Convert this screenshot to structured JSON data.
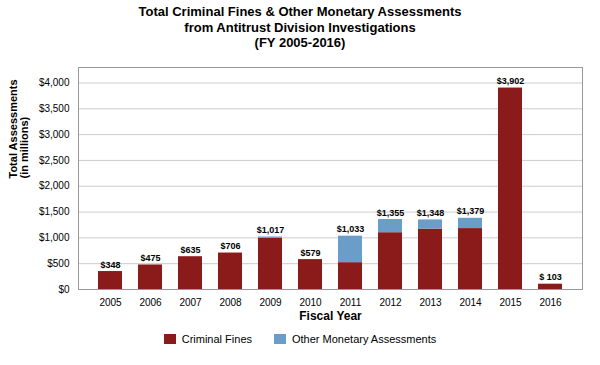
{
  "chart_data": {
    "type": "bar",
    "stacked": true,
    "title": "Total Criminal Fines & Other Monetary Assessments\nfrom Antitrust Division Investigations\n(FY 2005-2016)",
    "xlabel": "Fiscal Year",
    "ylabel": "Total Assessments\n(in millions)",
    "categories": [
      "2005",
      "2006",
      "2007",
      "2008",
      "2009",
      "2010",
      "2011",
      "2012",
      "2013",
      "2014",
      "2015",
      "2016"
    ],
    "series": [
      {
        "name": "Criminal Fines",
        "color": "#8B1A1A",
        "values": [
          348,
          475,
          635,
          706,
          990,
          579,
          520,
          1100,
          1170,
          1180,
          3902,
          103
        ]
      },
      {
        "name": "Other Monetary Assessments",
        "color": "#6B9DC9",
        "values": [
          0,
          0,
          0,
          0,
          27,
          0,
          513,
          255,
          178,
          199,
          0,
          0
        ]
      }
    ],
    "data_labels": true,
    "totals": [
      348,
      475,
      635,
      706,
      1017,
      579,
      1033,
      1355,
      1348,
      1379,
      3902,
      103
    ],
    "total_labels": [
      "$348",
      "$475",
      "$635",
      "$706",
      "$1,017",
      "$579",
      "$1,033",
      "$1,355",
      "$1,348",
      "$1,379",
      "$3,902",
      "$ 103"
    ],
    "ylim": [
      0,
      4300
    ],
    "yticks": [
      {
        "value": 0,
        "label": "$0"
      },
      {
        "value": 500,
        "label": "$500"
      },
      {
        "value": 1000,
        "label": "$1,000"
      },
      {
        "value": 1500,
        "label": "$1,500"
      },
      {
        "value": 2000,
        "label": "$2,000"
      },
      {
        "value": 2500,
        "label": "$2,500"
      },
      {
        "value": 3000,
        "label": "$3,000"
      },
      {
        "value": 3500,
        "label": "$3,500"
      },
      {
        "value": 4000,
        "label": "$4,000"
      }
    ],
    "grid": true,
    "legend": "bottom"
  }
}
